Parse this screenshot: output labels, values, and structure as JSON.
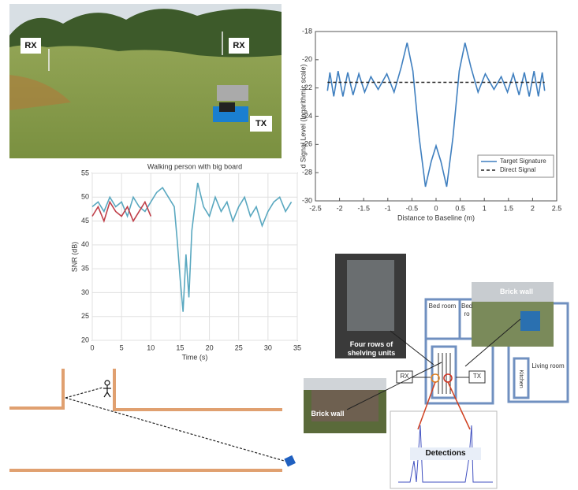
{
  "photo": {
    "labels": [
      "RX",
      "RX",
      "TX"
    ]
  },
  "chart_data": [
    {
      "type": "line",
      "ylabel": "d Signal Level (logarithmic scale)",
      "xlabel": "Distance to Baseline (m)",
      "x": [
        -2.25,
        -2.2,
        -2.12,
        -2.03,
        -1.93,
        -1.83,
        -1.72,
        -1.6,
        -1.48,
        -1.35,
        -1.2,
        -1.02,
        -0.87,
        -0.72,
        -0.6,
        -0.48,
        -0.35,
        -0.22,
        -0.1,
        0,
        0.1,
        0.22,
        0.35,
        0.48,
        0.6,
        0.72,
        0.87,
        1.02,
        1.2,
        1.35,
        1.48,
        1.6,
        1.72,
        1.83,
        1.93,
        2.03,
        2.12,
        2.2,
        2.25
      ],
      "series": [
        {
          "name": "Target Signature",
          "color": "#3f7fbf",
          "style": "solid",
          "values": [
            -22.2,
            -20.9,
            -22.6,
            -20.8,
            -22.6,
            -20.9,
            -22.5,
            -21.0,
            -22.3,
            -21.2,
            -22.1,
            -21.0,
            -22.3,
            -20.5,
            -18.8,
            -20.8,
            -25.5,
            -29.0,
            -27.2,
            -26.1,
            -27.2,
            -29.0,
            -25.5,
            -20.8,
            -18.8,
            -20.5,
            -22.3,
            -21.0,
            -22.1,
            -21.2,
            -22.3,
            -21.0,
            -22.5,
            -20.9,
            -22.6,
            -20.8,
            -22.6,
            -20.9,
            -22.2
          ]
        },
        {
          "name": "Direct Signal",
          "color": "#222222",
          "style": "dashed",
          "values": [
            -21.6,
            -21.6,
            -21.6,
            -21.6,
            -21.6,
            -21.6,
            -21.6,
            -21.6,
            -21.6,
            -21.6,
            -21.6,
            -21.6,
            -21.6,
            -21.6,
            -21.6,
            -21.6,
            -21.6,
            -21.6,
            -21.6,
            -21.6,
            -21.6,
            -21.6,
            -21.6,
            -21.6,
            -21.6,
            -21.6,
            -21.6,
            -21.6,
            -21.6,
            -21.6,
            -21.6,
            -21.6,
            -21.6,
            -21.6,
            -21.6,
            -21.6,
            -21.6,
            -21.6,
            -21.6
          ]
        }
      ],
      "xlim": [
        -2.5,
        2.5
      ],
      "xticks": [
        -2.5,
        -2,
        -1.5,
        -1,
        -0.5,
        0,
        0.5,
        1,
        1.5,
        2,
        2.5
      ],
      "ylim": [
        -30,
        -18
      ],
      "yticks": [
        -30,
        -28,
        -26,
        -24,
        -22,
        -20,
        -18
      ],
      "grid": false,
      "legend": "lower-right"
    },
    {
      "type": "line",
      "title": "Walking person with big board",
      "xlabel": "Time (s)",
      "ylabel": "SNR (dB)",
      "series": [
        {
          "color": "#5aa8c0",
          "style": "solid",
          "x": [
            0,
            1,
            2,
            3,
            4,
            5,
            6,
            7,
            8,
            9,
            10,
            11,
            12,
            13,
            14,
            14.5,
            15,
            15.5,
            16,
            16.5,
            17,
            18,
            19,
            20,
            21,
            22,
            23,
            24,
            25,
            26,
            27,
            28,
            29,
            30,
            31,
            32,
            33,
            34
          ],
          "values": [
            48,
            49,
            47,
            50,
            48,
            49,
            46,
            50,
            48,
            47,
            49,
            51,
            52,
            50,
            48,
            41,
            33,
            26,
            38,
            29,
            43,
            53,
            48,
            46,
            50,
            47,
            49,
            45,
            48,
            50,
            46,
            48,
            44,
            47,
            49,
            50,
            47,
            49
          ]
        },
        {
          "color": "#c0404a",
          "style": "solid",
          "x": [
            0,
            1,
            2,
            3,
            4,
            5,
            6,
            7,
            8,
            9,
            10
          ],
          "values": [
            46,
            48,
            45,
            49,
            47,
            46,
            48,
            45,
            47,
            49,
            46
          ]
        }
      ],
      "xlim": [
        0,
        35
      ],
      "xticks": [
        0,
        5,
        10,
        15,
        20,
        25,
        30,
        35
      ],
      "ylim": [
        20,
        55
      ],
      "yticks": [
        20,
        25,
        30,
        35,
        40,
        45,
        50,
        55
      ],
      "grid": true
    }
  ],
  "floorplan": {
    "bed_room": "Bed room",
    "bed_room_2": "Bed ro",
    "living_room": "Living room",
    "kitchen": "Kitchen",
    "rx": "RX",
    "tx": "TX",
    "shelving": "Four rows of shelving units",
    "brick_wall_photo": "Brick wall",
    "brick_wall_building": "Brick wall",
    "detections": "Detections"
  }
}
